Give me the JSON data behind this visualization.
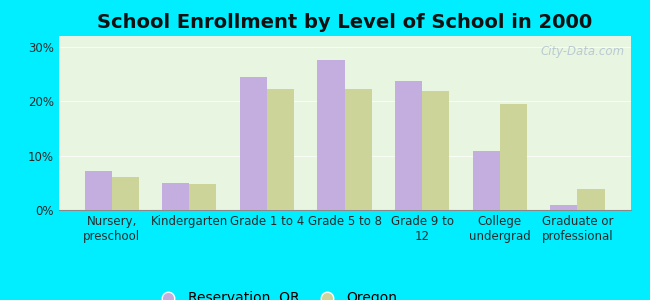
{
  "title": "School Enrollment by Level of School in 2000",
  "categories": [
    "Nursery,\npreschool",
    "Kindergarten",
    "Grade 1 to 4",
    "Grade 5 to 8",
    "Grade 9 to\n12",
    "College\nundergrad",
    "Graduate or\nprofessional"
  ],
  "reservation_values": [
    7.2,
    5.0,
    24.5,
    27.5,
    23.8,
    10.8,
    1.0
  ],
  "oregon_values": [
    6.0,
    4.8,
    22.2,
    22.2,
    21.8,
    19.5,
    3.8
  ],
  "reservation_color": "#c4aee0",
  "oregon_color": "#cdd49a",
  "background_color": "#00eeff",
  "plot_bg_color": "#e8f5e0",
  "ylabel_ticks": [
    "0%",
    "10%",
    "20%",
    "30%"
  ],
  "yticks": [
    0,
    10,
    20,
    30
  ],
  "ylim": [
    0,
    32
  ],
  "legend_labels": [
    "Reservation, OR",
    "Oregon"
  ],
  "bar_width": 0.35,
  "title_fontsize": 14,
  "tick_fontsize": 8.5,
  "legend_fontsize": 10,
  "watermark": "City-Data.com"
}
